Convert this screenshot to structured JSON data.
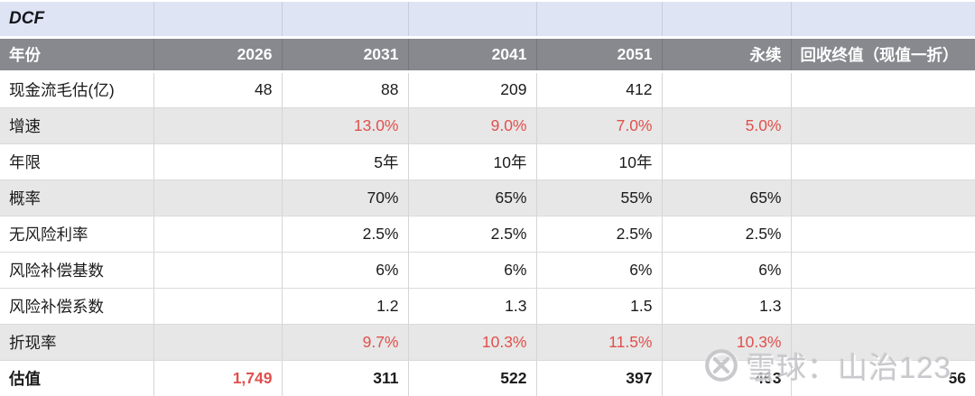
{
  "title_row": {
    "title": "DCF"
  },
  "table": {
    "columns": [
      {
        "key": "year",
        "label": "年份",
        "align": "left"
      },
      {
        "key": "y2026",
        "label": "2026",
        "align": "right"
      },
      {
        "key": "y2031",
        "label": "2031",
        "align": "right"
      },
      {
        "key": "y2041",
        "label": "2041",
        "align": "right"
      },
      {
        "key": "y2051",
        "label": "2051",
        "align": "right"
      },
      {
        "key": "perpetual",
        "label": "永续",
        "align": "right"
      },
      {
        "key": "terminal-value",
        "label": "回收终值（现值一折）",
        "align": "left"
      }
    ],
    "rows": [
      {
        "key": "cash-flow-estimate",
        "label": "现金流毛估(亿)",
        "values": [
          "48",
          "88",
          "209",
          "412",
          "",
          ""
        ],
        "shaded": false,
        "bold": false,
        "red_values": false,
        "red_cells": []
      },
      {
        "key": "growth-rate",
        "label": "增速",
        "values": [
          "",
          "13.0%",
          "9.0%",
          "7.0%",
          "5.0%",
          ""
        ],
        "shaded": true,
        "bold": false,
        "red_values": true,
        "red_cells": []
      },
      {
        "key": "duration-years",
        "label": "年限",
        "values": [
          "",
          "5年",
          "10年",
          "10年",
          "",
          ""
        ],
        "shaded": false,
        "bold": false,
        "red_values": false,
        "red_cells": []
      },
      {
        "key": "probability",
        "label": "概率",
        "values": [
          "",
          "70%",
          "65%",
          "55%",
          "65%",
          ""
        ],
        "shaded": true,
        "bold": false,
        "red_values": false,
        "red_cells": []
      },
      {
        "key": "risk-free-rate",
        "label": "无风险利率",
        "values": [
          "",
          "2.5%",
          "2.5%",
          "2.5%",
          "2.5%",
          ""
        ],
        "shaded": false,
        "bold": false,
        "red_values": false,
        "red_cells": []
      },
      {
        "key": "risk-premium-base",
        "label": "风险补偿基数",
        "values": [
          "",
          "6%",
          "6%",
          "6%",
          "6%",
          ""
        ],
        "shaded": false,
        "bold": false,
        "red_values": false,
        "red_cells": []
      },
      {
        "key": "risk-premium-coefficient",
        "label": "风险补偿系数",
        "values": [
          "",
          "1.2",
          "1.3",
          "1.5",
          "1.3",
          ""
        ],
        "shaded": false,
        "bold": false,
        "red_values": false,
        "red_cells": []
      },
      {
        "key": "discount-rate",
        "label": "折现率",
        "values": [
          "",
          "9.7%",
          "10.3%",
          "11.5%",
          "10.3%",
          ""
        ],
        "shaded": true,
        "bold": false,
        "red_values": true,
        "red_cells": []
      },
      {
        "key": "valuation",
        "label": "估值",
        "values": [
          "1,749",
          "311",
          "522",
          "397",
          "463",
          "56"
        ],
        "shaded": false,
        "bold": true,
        "red_values": false,
        "red_cells": [
          0
        ]
      }
    ]
  },
  "watermark": {
    "text": "雪球：山治123",
    "icon": "xueqiu-logo"
  },
  "colors": {
    "title_row_bg": "#DFE4F4",
    "header_bg": "#87898E",
    "header_text": "#FFFFFF",
    "shaded_row_bg": "#E7E7E7",
    "accent_red": "#E0504C",
    "grid_line": "#D5D5D5",
    "watermark_gray": "#C7C7CB"
  }
}
